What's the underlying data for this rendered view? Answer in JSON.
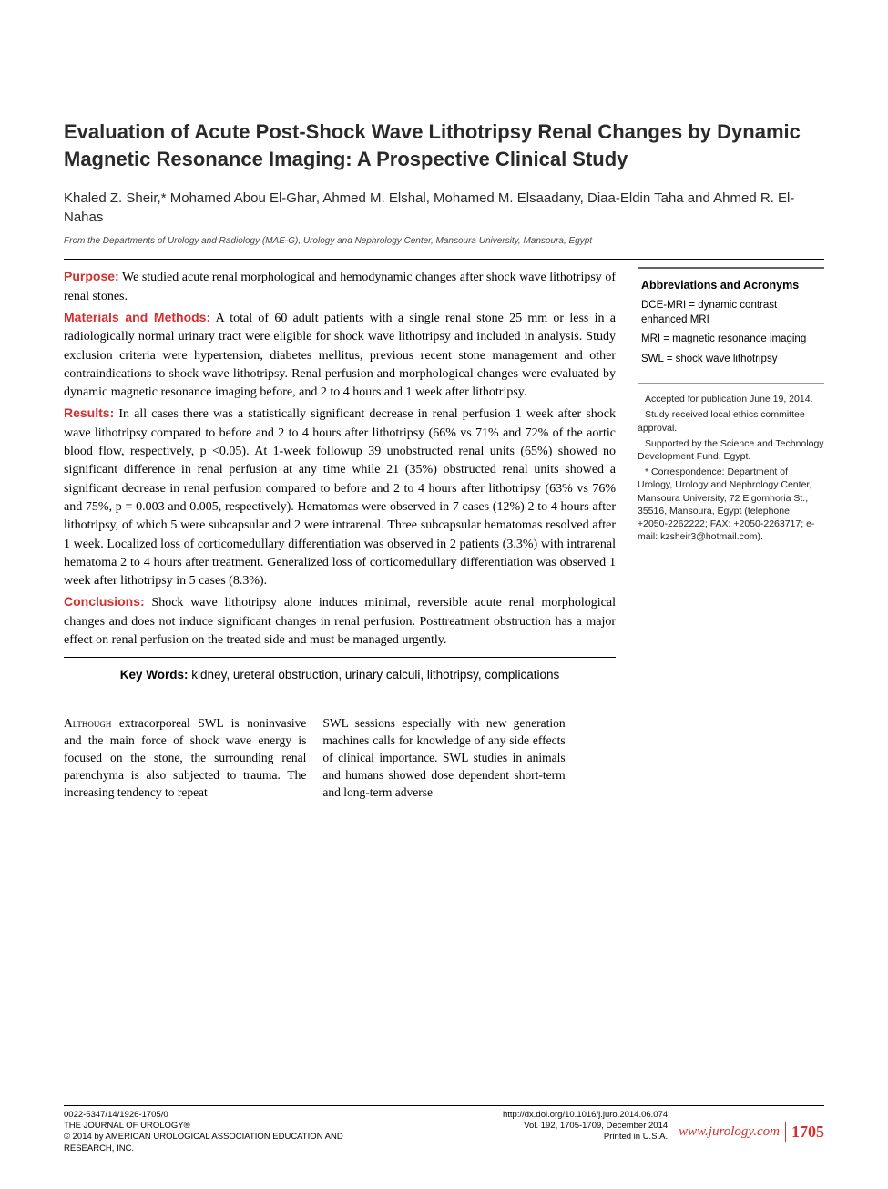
{
  "title": "Evaluation of Acute Post-Shock Wave Lithotripsy Renal Changes by Dynamic Magnetic Resonance Imaging: A Prospective Clinical Study",
  "authors": "Khaled Z. Sheir,* Mohamed Abou El-Ghar, Ahmed M. Elshal, Mohamed M. Elsaadany, Diaa-Eldin Taha and Ahmed R. El-Nahas",
  "affiliation": "From the Departments of Urology and Radiology (MAE-G), Urology and Nephrology Center, Mansoura University, Mansoura, Egypt",
  "abstract": {
    "purpose": {
      "label": "Purpose:",
      "text": " We studied acute renal morphological and hemodynamic changes after shock wave lithotripsy of renal stones."
    },
    "methods": {
      "label": "Materials and Methods:",
      "text": " A total of 60 adult patients with a single renal stone 25 mm or less in a radiologically normal urinary tract were eligible for shock wave lithotripsy and included in analysis. Study exclusion criteria were hypertension, diabetes mellitus, previous recent stone management and other contraindications to shock wave lithotripsy. Renal perfusion and morphological changes were evaluated by dynamic magnetic resonance imaging before, and 2 to 4 hours and 1 week after lithotripsy."
    },
    "results": {
      "label": "Results:",
      "text": " In all cases there was a statistically significant decrease in renal perfusion 1 week after shock wave lithotripsy compared to before and 2 to 4 hours after lithotripsy (66% vs 71% and 72% of the aortic blood flow, respectively, p <0.05). At 1-week followup 39 unobstructed renal units (65%) showed no significant difference in renal perfusion at any time while 21 (35%) obstructed renal units showed a significant decrease in renal perfusion compared to before and 2 to 4 hours after lithotripsy (63% vs 76% and 75%, p = 0.003 and 0.005, respectively). Hematomas were observed in 7 cases (12%) 2 to 4 hours after lithotripsy, of which 5 were subcapsular and 2 were intrarenal. Three subcapsular hematomas resolved after 1 week. Localized loss of corticomedullary differentiation was observed in 2 patients (3.3%) with intrarenal hematoma 2 to 4 hours after treatment. Generalized loss of corticomedullary differentiation was observed 1 week after lithotripsy in 5 cases (8.3%)."
    },
    "conclusions": {
      "label": "Conclusions:",
      "text": " Shock wave lithotripsy alone induces minimal, reversible acute renal morphological changes and does not induce significant changes in renal perfusion. Posttreatment obstruction has a major effect on renal perfusion on the treated side and must be managed urgently."
    }
  },
  "keywords": {
    "label": "Key Words:",
    "text": " kidney, ureteral obstruction, urinary calculi, lithotripsy, complications"
  },
  "sidebar": {
    "abbrev_title": "Abbreviations and Acronyms",
    "abbrevs": [
      "DCE-MRI = dynamic contrast enhanced MRI",
      "MRI = magnetic resonance imaging",
      "SWL = shock wave lithotripsy"
    ],
    "notes": [
      "Accepted for publication June 19, 2014.",
      "Study received local ethics committee approval.",
      "Supported by the Science and Technology Development Fund, Egypt.",
      "* Correspondence: Department of Urology, Urology and Nephrology Center, Mansoura University, 72 Elgomhoria St., 35516, Mansoura, Egypt (telephone: +2050-2262222; FAX: +2050-2263717; e-mail: kzsheir3@hotmail.com)."
    ]
  },
  "body": {
    "col1_lead": "Although",
    "col1_rest": " extracorporeal SWL is noninvasive and the main force of shock wave energy is focused on the stone, the surrounding renal parenchyma is also subjected to trauma. The increasing tendency to repeat",
    "col2": "SWL sessions especially with new generation machines calls for knowledge of any side effects of clinical importance. SWL studies in animals and humans showed dose dependent short-term and long-term adverse"
  },
  "footer": {
    "left_line1": "0022-5347/14/1926-1705/0",
    "left_line2": "THE JOURNAL OF UROLOGY®",
    "left_line3": "© 2014 by AMERICAN UROLOGICAL ASSOCIATION EDUCATION AND RESEARCH, INC.",
    "mid_line1": "http://dx.doi.org/10.1016/j.juro.2014.06.074",
    "mid_line2": "Vol. 192, 1705-1709, December 2014",
    "mid_line3": "Printed in U.S.A.",
    "site": "www.jurology.com",
    "page": "1705"
  },
  "colors": {
    "accent_red": "#d32f2f",
    "text": "#000000",
    "bg": "#ffffff"
  }
}
